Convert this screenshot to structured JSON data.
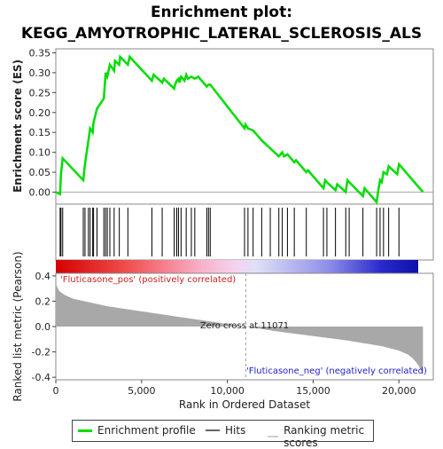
{
  "title_line1": "Enrichment plot:",
  "title_line2": "KEGG_AMYOTROPHIC_LATERAL_SCLEROSIS_ALS",
  "colors": {
    "enrichment": "#00dd00",
    "hits": "#000000",
    "metric_fill": "#a8a8a8",
    "zero_line": "#aaaaaa"
  },
  "chart_data": [
    {
      "type": "line",
      "name": "enrichment-profile",
      "ylabel": "Enrichment score (ES)",
      "ylim": [
        -0.03,
        0.36
      ],
      "yticks": [
        0.0,
        0.05,
        0.1,
        0.15,
        0.2,
        0.25,
        0.3,
        0.35
      ],
      "ytick_labels": [
        "0.00",
        "0.05",
        "0.10",
        "0.15",
        "0.20",
        "0.25",
        "0.30",
        "0.35"
      ],
      "xlim": [
        0,
        22000
      ],
      "series": [
        {
          "name": "Enrichment profile",
          "x": [
            0,
            250,
            300,
            400,
            1600,
            1700,
            1900,
            2000,
            2150,
            2200,
            2400,
            2800,
            2900,
            3000,
            3150,
            3400,
            3450,
            3700,
            3750,
            4200,
            4300,
            5600,
            5700,
            6200,
            6300,
            6900,
            6950,
            7050,
            7150,
            7200,
            7300,
            7500,
            7600,
            7700,
            7900,
            8100,
            8300,
            8800,
            8900,
            9000,
            11000,
            11050,
            11200,
            11500,
            12000,
            12500,
            13000,
            13200,
            13300,
            13500,
            13900,
            14000,
            14600,
            14700,
            15600,
            15700,
            15800,
            16300,
            16400,
            16900,
            17000,
            17100,
            17900,
            18000,
            18700,
            18800,
            18900,
            19000,
            19100,
            19300,
            19400,
            19900,
            20000,
            21400
          ],
          "y": [
            0.0,
            -0.005,
            0.045,
            0.085,
            0.03,
            0.07,
            0.13,
            0.16,
            0.15,
            0.175,
            0.21,
            0.235,
            0.3,
            0.29,
            0.32,
            0.305,
            0.33,
            0.32,
            0.34,
            0.32,
            0.34,
            0.28,
            0.295,
            0.275,
            0.285,
            0.26,
            0.27,
            0.28,
            0.285,
            0.275,
            0.29,
            0.28,
            0.295,
            0.285,
            0.29,
            0.285,
            0.29,
            0.265,
            0.27,
            0.27,
            0.16,
            0.17,
            0.16,
            0.155,
            0.13,
            0.11,
            0.09,
            0.1,
            0.09,
            0.095,
            0.075,
            0.08,
            0.05,
            0.055,
            0.01,
            0.03,
            0.025,
            0.005,
            0.02,
            0.0,
            0.03,
            0.025,
            -0.01,
            0.01,
            -0.025,
            0.005,
            0.03,
            0.025,
            0.05,
            0.045,
            0.065,
            0.045,
            0.07,
            0.0
          ]
        }
      ]
    },
    {
      "type": "hits",
      "name": "hits",
      "xlim": [
        0,
        22000
      ],
      "x": [
        250,
        300,
        400,
        1600,
        1700,
        1900,
        2000,
        2150,
        2200,
        2400,
        2800,
        2900,
        3000,
        3150,
        3400,
        3700,
        4200,
        5600,
        6200,
        6900,
        7050,
        7150,
        7300,
        7600,
        7900,
        8100,
        8800,
        8900,
        9000,
        11000,
        11200,
        11500,
        12000,
        12500,
        13000,
        13200,
        13500,
        13900,
        14600,
        15600,
        15800,
        16300,
        16900,
        17100,
        17900,
        18700,
        18900,
        19100,
        19400,
        20000
      ]
    },
    {
      "type": "area",
      "name": "ranked-list-metric",
      "xlabel": "Rank in Ordered Dataset",
      "ylabel": "Ranked list metric (Pearson)",
      "xlim": [
        0,
        22000
      ],
      "ylim": [
        -0.42,
        0.42
      ],
      "xticks": [
        0,
        5000,
        10000,
        15000,
        20000
      ],
      "xtick_labels": [
        "0",
        "5,000",
        "10,000",
        "15,000",
        "20,000"
      ],
      "yticks": [
        -0.4,
        -0.2,
        0.0,
        0.2,
        0.4
      ],
      "ytick_labels": [
        "-0.4",
        "-0.2",
        "0.0",
        "0.2",
        "0.4"
      ],
      "x": [
        0,
        50,
        200,
        500,
        1000,
        2000,
        3000,
        5000,
        7000,
        9000,
        11071,
        13000,
        15000,
        17000,
        19000,
        20000,
        20500,
        20800,
        21000,
        21200,
        21400
      ],
      "y": [
        0.36,
        0.32,
        0.28,
        0.25,
        0.22,
        0.19,
        0.16,
        0.12,
        0.08,
        0.04,
        0.0,
        -0.04,
        -0.075,
        -0.11,
        -0.155,
        -0.19,
        -0.22,
        -0.25,
        -0.28,
        -0.32,
        -0.38
      ],
      "annotations": {
        "zero_cross": "Zero cross at 11071",
        "pos_label": "'Fluticasone_pos' (positively correlated)",
        "neg_label": "'Fluticasone_neg' (negatively correlated)"
      },
      "zero_cross_rank": 11071
    }
  ],
  "legend": {
    "items": [
      {
        "label": "Enrichment profile",
        "color": "#00dd00"
      },
      {
        "label": "Hits",
        "color": "#666666"
      },
      {
        "label": "Ranking metric scores",
        "color": "#cccccc"
      }
    ]
  }
}
